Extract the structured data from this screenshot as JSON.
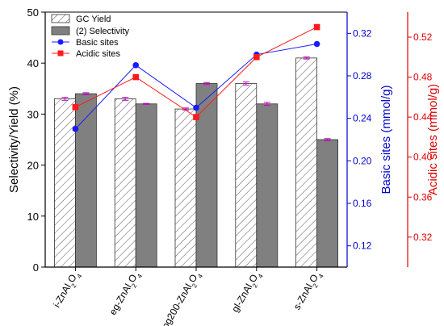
{
  "chart_data": {
    "type": "bar",
    "categories": [
      "i-ZnAl2O4",
      "eg-ZnAl2O4",
      "pg200-ZnAl2O4",
      "gl-ZnAl2O4",
      "s-ZnAl2O4"
    ],
    "category_labels": [
      {
        "pre": "i-ZnAl",
        "sub1": "2",
        "mid": "O",
        "sub2": "4"
      },
      {
        "pre": "eg-ZnAl",
        "sub1": "2",
        "mid": "O",
        "sub2": "4"
      },
      {
        "pre": "pg200-ZnAl",
        "sub1": "2",
        "mid": "O",
        "sub2": "4"
      },
      {
        "pre": "gl-ZnAl",
        "sub1": "2",
        "mid": "O",
        "sub2": "4"
      },
      {
        "pre": "s-ZnAl",
        "sub1": "2",
        "mid": "O",
        "sub2": "4"
      }
    ],
    "series": [
      {
        "name": "GC Yield",
        "kind": "bar",
        "axis": "left",
        "values": [
          33,
          33,
          31,
          36,
          41
        ],
        "errors": [
          0.3,
          0.3,
          0.2,
          0.3,
          0.2
        ],
        "color": "#ffffff",
        "hatch": true
      },
      {
        "name": "(2) Selectivity",
        "kind": "bar",
        "axis": "left",
        "values": [
          34,
          32,
          36,
          32,
          25
        ],
        "errors": [
          0.2,
          0.1,
          0.2,
          0.3,
          0.2
        ],
        "color": "#808080",
        "hatch": false
      },
      {
        "name": "Basic sites",
        "kind": "line",
        "axis": "basic",
        "values": [
          0.23,
          0.29,
          0.25,
          0.3,
          0.31
        ],
        "color": "#1a1aff",
        "marker": "circle"
      },
      {
        "name": "Acidic sites",
        "kind": "line",
        "axis": "acidic",
        "values": [
          0.45,
          0.48,
          0.44,
          0.5,
          0.53
        ],
        "color": "#ff1a1a",
        "marker": "square"
      }
    ],
    "axes": {
      "left": {
        "label": "Selectivity/Yield (%)",
        "min": 0,
        "max": 50,
        "ticks": [
          "0",
          "10",
          "20",
          "30",
          "40",
          "50"
        ],
        "color": "#000000"
      },
      "basic": {
        "label": "Basic sites (mmol/g)",
        "min": 0.1,
        "max": 0.34,
        "ticks": [
          "0.12",
          "0.16",
          "0.20",
          "0.24",
          "0.28",
          "0.32"
        ],
        "color": "#0000cc"
      },
      "acidic": {
        "label": "Acidic sites (mmol/g)",
        "min": 0.29,
        "max": 0.545,
        "ticks": [
          "0.32",
          "0.36",
          "0.40",
          "0.44",
          "0.48",
          "0.52"
        ],
        "color": "#dd0000"
      }
    },
    "legend": {
      "placement": "top-left"
    },
    "grid": false
  }
}
